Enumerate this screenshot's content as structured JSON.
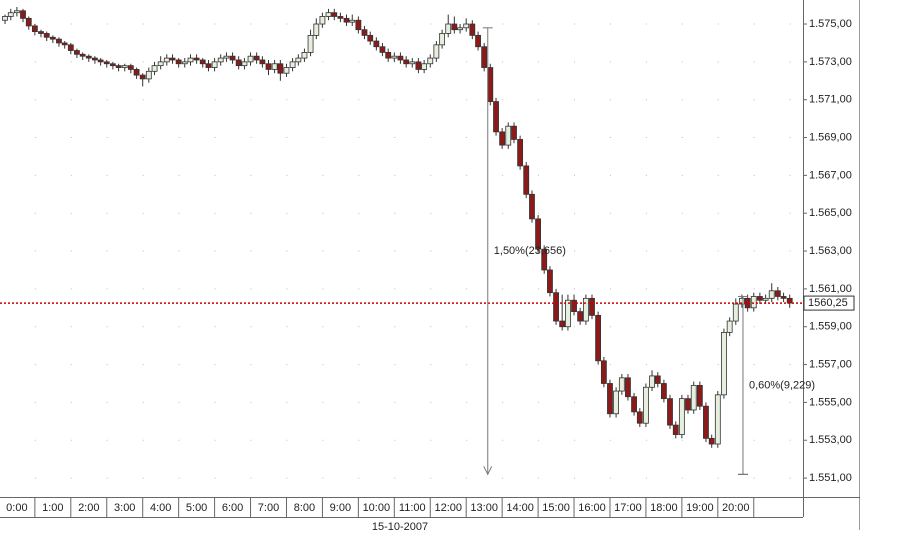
{
  "chart_data": {
    "type": "candlestick",
    "x_label": "15-10-2007",
    "xlim": [
      -0.47,
      21.87
    ],
    "ylim": [
      1550,
      1576.27
    ],
    "xticks": [
      {
        "value": 0,
        "label": "0:00"
      },
      {
        "value": 1,
        "label": "1:00"
      },
      {
        "value": 2,
        "label": "2:00"
      },
      {
        "value": 3,
        "label": "3:00"
      },
      {
        "value": 4,
        "label": "4:00"
      },
      {
        "value": 5,
        "label": "5:00"
      },
      {
        "value": 6,
        "label": "6:00"
      },
      {
        "value": 7,
        "label": "7:00"
      },
      {
        "value": 8,
        "label": "8:00"
      },
      {
        "value": 9,
        "label": "9:00"
      },
      {
        "value": 10,
        "label": "10:00"
      },
      {
        "value": 11,
        "label": "11:00"
      },
      {
        "value": 12,
        "label": "12:00"
      },
      {
        "value": 13,
        "label": "13:00"
      },
      {
        "value": 14,
        "label": "14:00"
      },
      {
        "value": 15,
        "label": "15:00"
      },
      {
        "value": 16,
        "label": "16:00"
      },
      {
        "value": 17,
        "label": "17:00"
      },
      {
        "value": 18,
        "label": "18:00"
      },
      {
        "value": 19,
        "label": "19:00"
      },
      {
        "value": 20,
        "label": "20:00"
      }
    ],
    "yticks": [
      {
        "value": 1551,
        "label": "1.551,00"
      },
      {
        "value": 1553,
        "label": "1.553,00"
      },
      {
        "value": 1555,
        "label": "1.555,00"
      },
      {
        "value": 1557,
        "label": "1.557,00"
      },
      {
        "value": 1559,
        "label": "1.559,00"
      },
      {
        "value": 1561,
        "label": "1.561,00"
      },
      {
        "value": 1563,
        "label": "1.563,00"
      },
      {
        "value": 1565,
        "label": "1.565,00"
      },
      {
        "value": 1567,
        "label": "1.567,00"
      },
      {
        "value": 1569,
        "label": "1.569,00"
      },
      {
        "value": 1571,
        "label": "1.571,00"
      },
      {
        "value": 1573,
        "label": "1.573,00"
      },
      {
        "value": 1575,
        "label": "1.575,00"
      }
    ],
    "grid": true,
    "up_color": "#e6eedd",
    "down_color": "#8b1a1a",
    "x": [
      -0.33,
      -0.17,
      0,
      0.17,
      0.33,
      0.5,
      0.67,
      0.83,
      1,
      1.17,
      1.33,
      1.5,
      1.67,
      1.83,
      2,
      2.17,
      2.33,
      2.5,
      2.67,
      2.83,
      3,
      3.17,
      3.33,
      3.5,
      3.67,
      3.83,
      4,
      4.17,
      4.33,
      4.5,
      4.67,
      4.83,
      5,
      5.17,
      5.33,
      5.5,
      5.67,
      5.83,
      6,
      6.17,
      6.33,
      6.5,
      6.67,
      6.83,
      7,
      7.17,
      7.33,
      7.5,
      7.67,
      7.83,
      8,
      8.17,
      8.33,
      8.5,
      8.67,
      8.83,
      9,
      9.17,
      9.33,
      9.5,
      9.67,
      9.83,
      10,
      10.17,
      10.33,
      10.5,
      10.67,
      10.83,
      11,
      11.17,
      11.33,
      11.5,
      11.67,
      11.83,
      12,
      12.17,
      12.33,
      12.5,
      12.67,
      12.83,
      13,
      13.17,
      13.33,
      13.5,
      13.67,
      13.83,
      14,
      14.17,
      14.33,
      14.5,
      14.67,
      14.83,
      15,
      15.17,
      15.33,
      15.5,
      15.67,
      15.83,
      16,
      16.17,
      16.33,
      16.5,
      16.67,
      16.83,
      17,
      17.17,
      17.33,
      17.5,
      17.67,
      17.83,
      18,
      18.17,
      18.33,
      18.5,
      18.67,
      18.83,
      19,
      19.17,
      19.33,
      19.5,
      19.67,
      19.83,
      20,
      20.17,
      20.33,
      20.5,
      20.67,
      20.83,
      21,
      21.17,
      21.33,
      21.5
    ],
    "open": [
      1575.2,
      1575.4,
      1575.6,
      1575.7,
      1575.3,
      1574.9,
      1574.6,
      1574.5,
      1574.3,
      1574.2,
      1574.0,
      1573.9,
      1573.6,
      1573.4,
      1573.3,
      1573.2,
      1573.1,
      1573.0,
      1572.9,
      1572.8,
      1572.7,
      1572.8,
      1572.6,
      1572.3,
      1572.1,
      1572.5,
      1572.8,
      1573.0,
      1573.2,
      1573.1,
      1572.9,
      1573.0,
      1573.2,
      1573.1,
      1572.9,
      1572.7,
      1573.0,
      1573.2,
      1573.3,
      1573.1,
      1572.8,
      1573.0,
      1573.3,
      1573.1,
      1572.9,
      1572.6,
      1572.9,
      1572.4,
      1572.7,
      1573.0,
      1573.2,
      1573.5,
      1574.4,
      1575.0,
      1575.4,
      1575.6,
      1575.4,
      1575.3,
      1575.1,
      1575.2,
      1574.7,
      1574.4,
      1574.1,
      1573.8,
      1573.5,
      1573.2,
      1573.3,
      1573.1,
      1572.9,
      1573.0,
      1572.6,
      1572.9,
      1573.2,
      1573.9,
      1574.5,
      1575.0,
      1574.7,
      1574.8,
      1575.0,
      1574.4,
      1573.8,
      1572.7,
      1570.9,
      1569.3,
      1568.6,
      1569.6,
      1568.9,
      1567.5,
      1566.0,
      1564.7,
      1563.1,
      1562.0,
      1560.8,
      1559.3,
      1559.0,
      1560.4,
      1559.8,
      1559.3,
      1560.5,
      1559.6,
      1557.2,
      1556.0,
      1554.4,
      1555.6,
      1556.3,
      1555.3,
      1554.5,
      1553.9,
      1555.8,
      1556.4,
      1556.0,
      1555.2,
      1553.8,
      1553.3,
      1555.2,
      1554.6,
      1555.9,
      1554.8,
      1553.1,
      1552.8,
      1555.4,
      1558.7,
      1559.3,
      1560.2,
      1560.5,
      1560.0,
      1560.6,
      1560.4,
      1560.5,
      1560.9,
      1560.6,
      1560.5
    ],
    "high": [
      1575.5,
      1575.8,
      1575.9,
      1575.8,
      1575.4,
      1575.0,
      1574.7,
      1574.6,
      1574.4,
      1574.3,
      1574.1,
      1574.0,
      1573.7,
      1573.5,
      1573.4,
      1573.3,
      1573.2,
      1573.1,
      1573.0,
      1572.9,
      1572.9,
      1572.9,
      1572.7,
      1572.4,
      1572.7,
      1573.0,
      1573.3,
      1573.4,
      1573.4,
      1573.2,
      1573.2,
      1573.4,
      1573.4,
      1573.2,
      1573.1,
      1573.2,
      1573.4,
      1573.5,
      1573.5,
      1573.3,
      1573.2,
      1573.5,
      1573.5,
      1573.3,
      1573.1,
      1573.1,
      1573.1,
      1572.9,
      1573.2,
      1573.4,
      1573.7,
      1574.7,
      1575.3,
      1575.6,
      1575.8,
      1575.8,
      1575.6,
      1575.5,
      1575.5,
      1575.4,
      1574.9,
      1574.6,
      1574.3,
      1574.0,
      1573.7,
      1573.5,
      1573.5,
      1573.3,
      1573.2,
      1573.2,
      1573.1,
      1573.4,
      1574.1,
      1574.7,
      1575.5,
      1575.4,
      1575.0,
      1575.3,
      1575.2,
      1574.6,
      1574.0,
      1572.9,
      1571.1,
      1569.5,
      1569.8,
      1569.8,
      1569.1,
      1567.7,
      1566.2,
      1564.9,
      1563.3,
      1562.2,
      1561.0,
      1560.7,
      1560.7,
      1560.7,
      1560.0,
      1560.7,
      1560.7,
      1559.8,
      1557.4,
      1556.2,
      1555.8,
      1556.5,
      1556.5,
      1555.5,
      1554.7,
      1556.0,
      1556.7,
      1556.6,
      1556.2,
      1555.4,
      1554.0,
      1555.4,
      1555.4,
      1556.1,
      1556.1,
      1555.0,
      1553.3,
      1555.6,
      1558.9,
      1559.5,
      1560.5,
      1560.7,
      1560.7,
      1560.8,
      1560.8,
      1560.7,
      1561.3,
      1561.1,
      1560.8,
      1560.7
    ],
    "low": [
      1575.0,
      1575.2,
      1575.4,
      1575.1,
      1574.7,
      1574.4,
      1574.3,
      1574.1,
      1574.0,
      1573.8,
      1573.7,
      1573.4,
      1573.2,
      1573.1,
      1573.0,
      1572.9,
      1572.8,
      1572.7,
      1572.6,
      1572.5,
      1572.5,
      1572.4,
      1572.1,
      1571.7,
      1571.9,
      1572.3,
      1572.6,
      1572.8,
      1572.9,
      1572.7,
      1572.7,
      1572.8,
      1572.9,
      1572.7,
      1572.5,
      1572.5,
      1572.8,
      1573.0,
      1572.9,
      1572.6,
      1572.6,
      1572.8,
      1572.9,
      1572.7,
      1572.3,
      1572.4,
      1572.0,
      1572.2,
      1572.5,
      1572.8,
      1573.0,
      1573.3,
      1574.2,
      1574.8,
      1575.2,
      1575.2,
      1575.1,
      1574.9,
      1574.9,
      1574.5,
      1574.2,
      1573.9,
      1573.6,
      1573.3,
      1573.0,
      1573.0,
      1572.9,
      1572.7,
      1572.7,
      1572.4,
      1572.4,
      1572.7,
      1573.0,
      1573.7,
      1574.3,
      1574.5,
      1574.5,
      1574.6,
      1574.2,
      1573.6,
      1572.5,
      1570.7,
      1569.1,
      1568.4,
      1568.4,
      1568.7,
      1567.3,
      1565.8,
      1564.5,
      1562.9,
      1561.8,
      1560.6,
      1559.1,
      1558.8,
      1558.8,
      1559.6,
      1559.1,
      1559.1,
      1559.4,
      1557.0,
      1555.8,
      1554.2,
      1554.2,
      1555.4,
      1555.1,
      1554.3,
      1553.7,
      1553.7,
      1555.6,
      1555.8,
      1555.0,
      1553.6,
      1553.1,
      1553.1,
      1554.4,
      1554.4,
      1554.6,
      1552.9,
      1552.6,
      1552.6,
      1555.2,
      1558.5,
      1559.1,
      1560.0,
      1559.8,
      1559.8,
      1560.2,
      1560.2,
      1560.3,
      1560.4,
      1560.3,
      1560.0
    ],
    "close": [
      1575.4,
      1575.6,
      1575.7,
      1575.3,
      1574.9,
      1574.6,
      1574.5,
      1574.3,
      1574.2,
      1574.0,
      1573.9,
      1573.6,
      1573.4,
      1573.3,
      1573.2,
      1573.1,
      1573.0,
      1572.9,
      1572.8,
      1572.7,
      1572.8,
      1572.6,
      1572.3,
      1572.1,
      1572.5,
      1572.8,
      1573.0,
      1573.2,
      1573.1,
      1572.9,
      1573.0,
      1573.2,
      1573.1,
      1572.9,
      1572.7,
      1573.0,
      1573.2,
      1573.3,
      1573.1,
      1572.8,
      1573.0,
      1573.3,
      1573.1,
      1572.9,
      1572.6,
      1572.9,
      1572.4,
      1572.7,
      1573.0,
      1573.2,
      1573.5,
      1574.4,
      1575.0,
      1575.4,
      1575.6,
      1575.4,
      1575.3,
      1575.1,
      1575.2,
      1574.7,
      1574.4,
      1574.1,
      1573.8,
      1573.5,
      1573.2,
      1573.3,
      1573.1,
      1572.9,
      1573.0,
      1572.6,
      1572.9,
      1573.2,
      1573.9,
      1574.5,
      1575.0,
      1574.7,
      1574.8,
      1575.0,
      1574.4,
      1573.8,
      1572.7,
      1570.9,
      1569.3,
      1568.6,
      1569.6,
      1568.9,
      1567.5,
      1566.0,
      1564.7,
      1563.1,
      1562.0,
      1560.8,
      1559.3,
      1559.0,
      1560.4,
      1559.8,
      1559.3,
      1560.5,
      1559.6,
      1557.2,
      1556.0,
      1554.4,
      1555.6,
      1556.3,
      1555.3,
      1554.5,
      1553.9,
      1555.8,
      1556.4,
      1556.0,
      1555.2,
      1553.8,
      1553.3,
      1555.2,
      1554.6,
      1555.9,
      1554.8,
      1553.1,
      1552.8,
      1555.4,
      1558.7,
      1559.3,
      1560.2,
      1560.5,
      1560.0,
      1560.6,
      1560.4,
      1560.5,
      1560.9,
      1560.6,
      1560.5,
      1560.25
    ],
    "last_price": 1560.25,
    "last_price_label": "1560,25",
    "last_price_color": "#cc0000",
    "annotations": [
      {
        "text": "1,50%(23,656)",
        "x": 13.1,
        "from": 1574.8,
        "to": 1551.2
      },
      {
        "text": "0,60%(9,229)",
        "x": 20.2,
        "from": 1560.6,
        "to": 1551.2
      }
    ]
  }
}
